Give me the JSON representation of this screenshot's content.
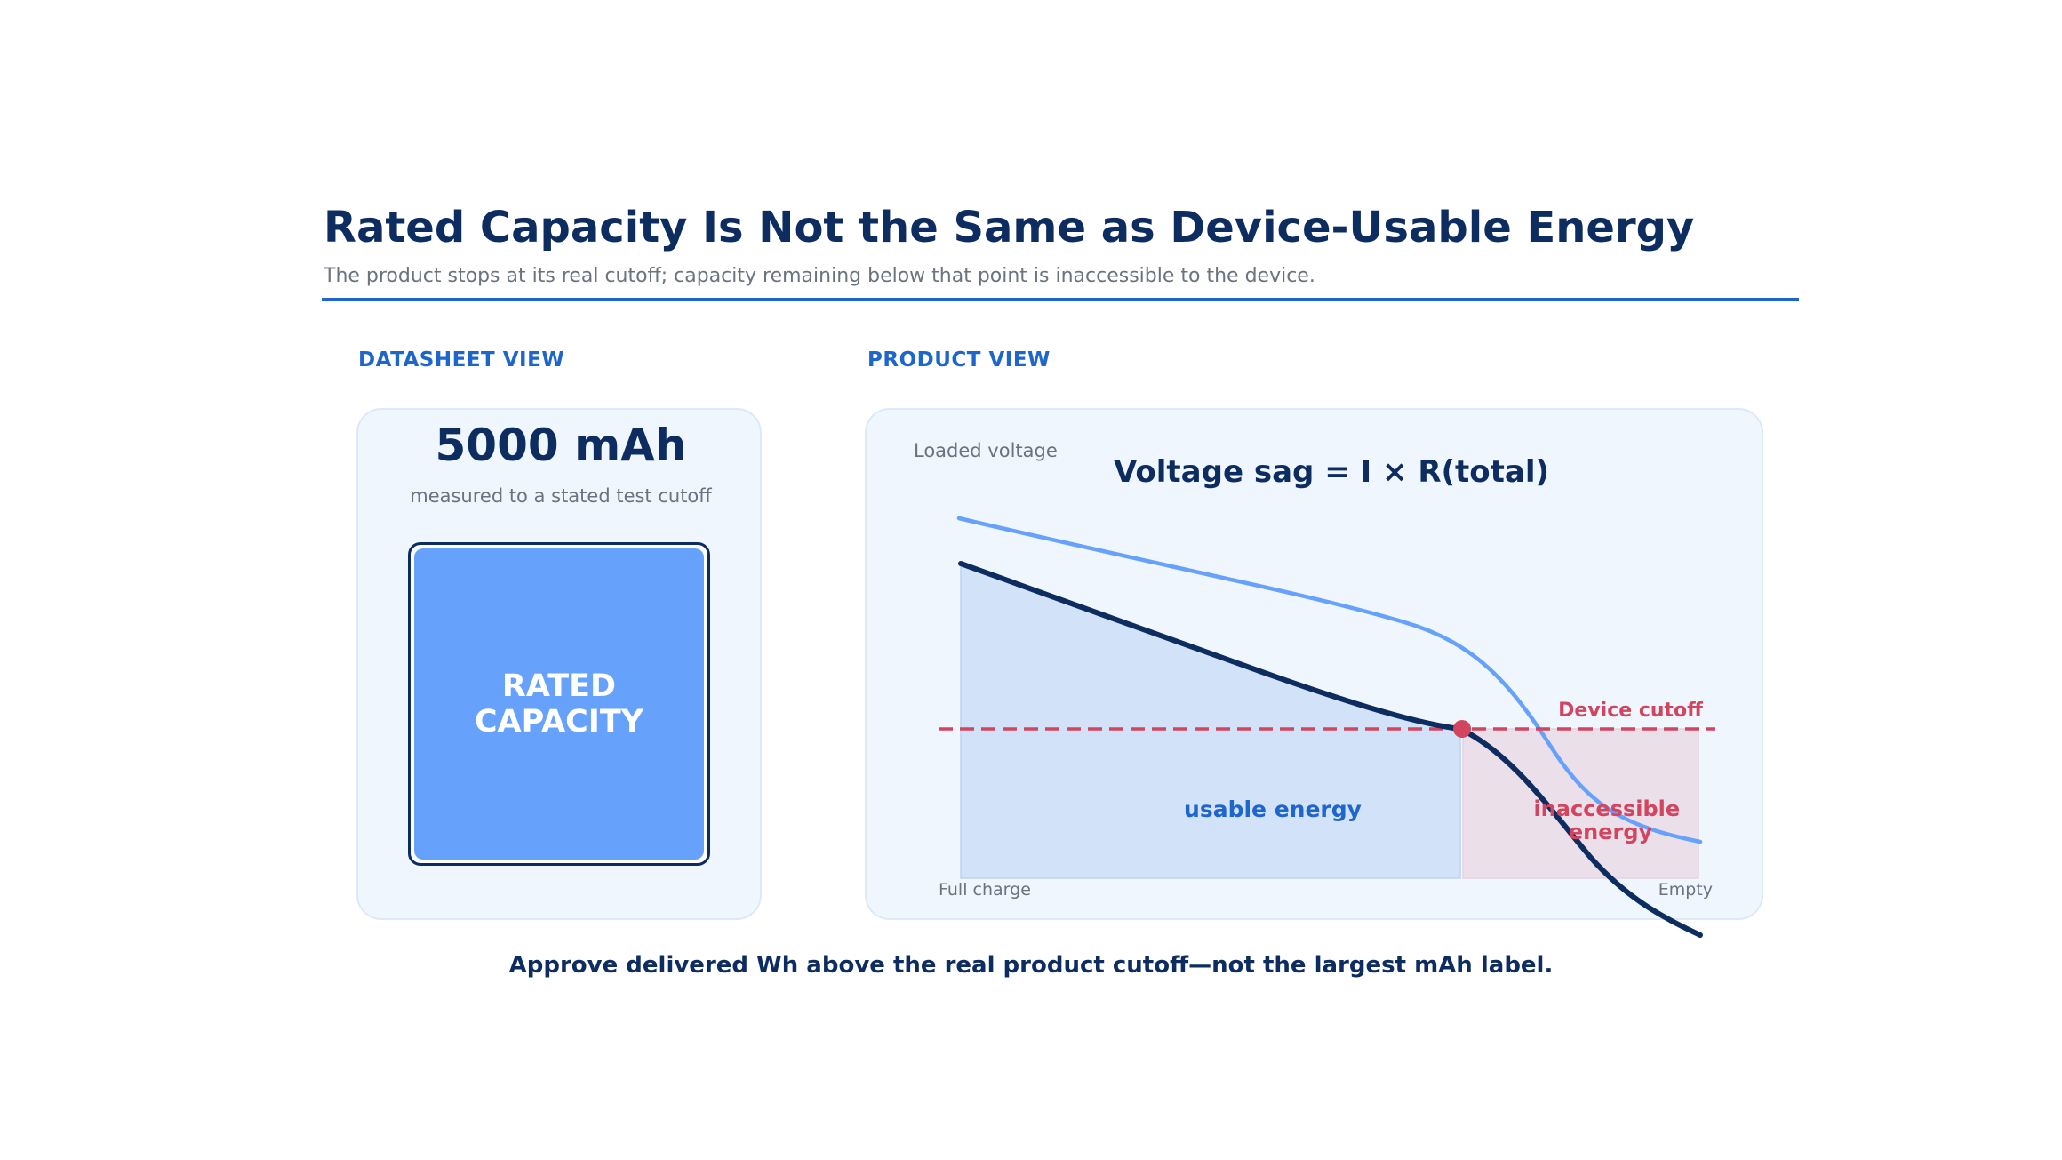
{
  "header": {
    "title": "Rated Capacity Is Not the Same as Device-Usable Energy",
    "subtitle": "The product stops at its real cutoff; capacity remaining below that point is inaccessible to the device."
  },
  "datasheet": {
    "section_label": "DATASHEET VIEW",
    "value": "5000 mAh",
    "note": "measured to a stated test cutoff",
    "box_label": "RATED\nCAPACITY"
  },
  "product": {
    "section_label": "PRODUCT VIEW",
    "y_label": "Loaded voltage",
    "formula": "Voltage sag = I × R(total)",
    "cutoff_label": "Device cutoff",
    "usable_label": "usable energy",
    "inaccessible_label": "inaccessible\nenergy",
    "x_start_label": "Full charge",
    "x_end_label": "Empty"
  },
  "footer": {
    "takeaway": "Approve delivered Wh above the real product cutoff—not the largest mAh label."
  },
  "colors": {
    "navy": "#0d2c5f",
    "accent_blue": "#1f66cc",
    "light_blue_curve": "#66a1fc",
    "usable_fill": "#d2e2f8",
    "inaccessible_fill": "#ebdfea",
    "cutoff_red": "#d2455f",
    "panel_bg": "#eff6fe",
    "muted_text": "#6b7280"
  }
}
